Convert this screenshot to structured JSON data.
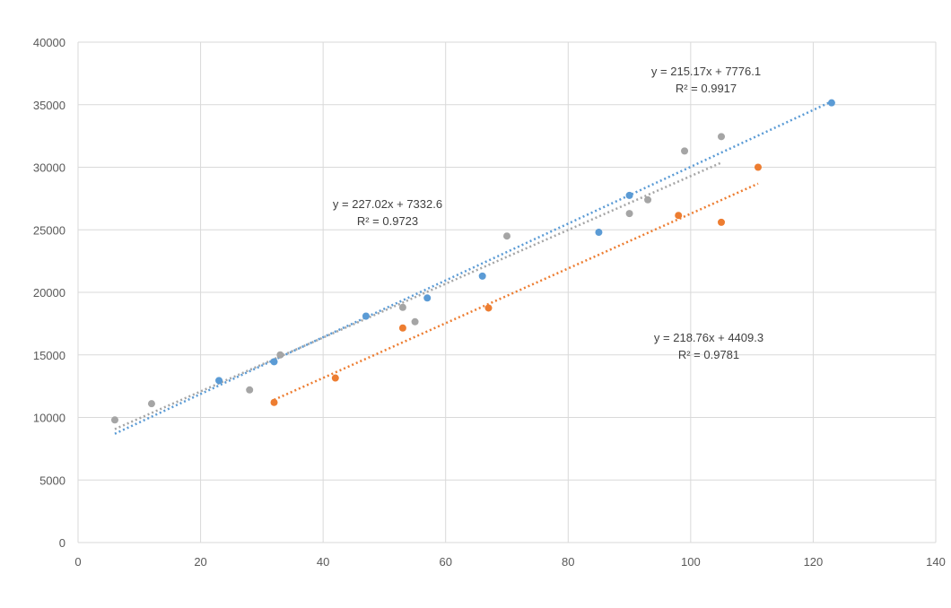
{
  "chart_data": {
    "type": "scatter",
    "title": "",
    "xlabel": "",
    "ylabel": "",
    "xlim": [
      0,
      140
    ],
    "ylim": [
      0,
      40000
    ],
    "x_ticks": [
      0,
      20,
      40,
      60,
      80,
      100,
      120,
      140
    ],
    "y_ticks": [
      0,
      5000,
      10000,
      15000,
      20000,
      25000,
      30000,
      35000,
      40000
    ],
    "x_tick_labels": [
      "0",
      "20",
      "40",
      "60",
      "80",
      "100",
      "120",
      "140"
    ],
    "y_tick_labels": [
      "0",
      "5000",
      "10000",
      "15000",
      "20000",
      "25000",
      "30000",
      "35000",
      "40000"
    ],
    "grid": true,
    "legend": "none",
    "series": [
      {
        "name": "series-blue",
        "color": "#5b9bd5",
        "points": [
          [
            23,
            12950
          ],
          [
            32,
            14450
          ],
          [
            47,
            18100
          ],
          [
            57,
            19550
          ],
          [
            66,
            21300
          ],
          [
            85,
            24800
          ],
          [
            90,
            27750
          ],
          [
            123,
            35150
          ]
        ],
        "trendline": {
          "slope": 227.02,
          "intercept": 7332.6,
          "x_range": [
            6,
            123
          ],
          "equation": "y = 227.02x + 7332.6",
          "r2": "R² = 0.9723"
        }
      },
      {
        "name": "series-orange",
        "color": "#ed7d31",
        "points": [
          [
            32,
            11200
          ],
          [
            42,
            13150
          ],
          [
            53,
            17150
          ],
          [
            67,
            18750
          ],
          [
            98,
            26150
          ],
          [
            105,
            25600
          ],
          [
            111,
            30000
          ]
        ],
        "trendline": {
          "slope": 218.76,
          "intercept": 4409.3,
          "x_range": [
            32,
            111
          ],
          "equation": "y = 218.76x + 4409.3",
          "r2": "R² = 0.9781"
        }
      },
      {
        "name": "series-gray",
        "color": "#a5a5a5",
        "points": [
          [
            6,
            9800
          ],
          [
            12,
            11100
          ],
          [
            28,
            12200
          ],
          [
            33,
            15000
          ],
          [
            53,
            18800
          ],
          [
            55,
            17650
          ],
          [
            70,
            24500
          ],
          [
            90,
            26300
          ],
          [
            93,
            27400
          ],
          [
            99,
            31300
          ],
          [
            105,
            32450
          ]
        ],
        "trendline": {
          "slope": 215.17,
          "intercept": 7776.1,
          "x_range": [
            6,
            105
          ],
          "equation": "y = 215.17x + 7776.1",
          "r2": "R² = 0.9917"
        }
      }
    ]
  }
}
